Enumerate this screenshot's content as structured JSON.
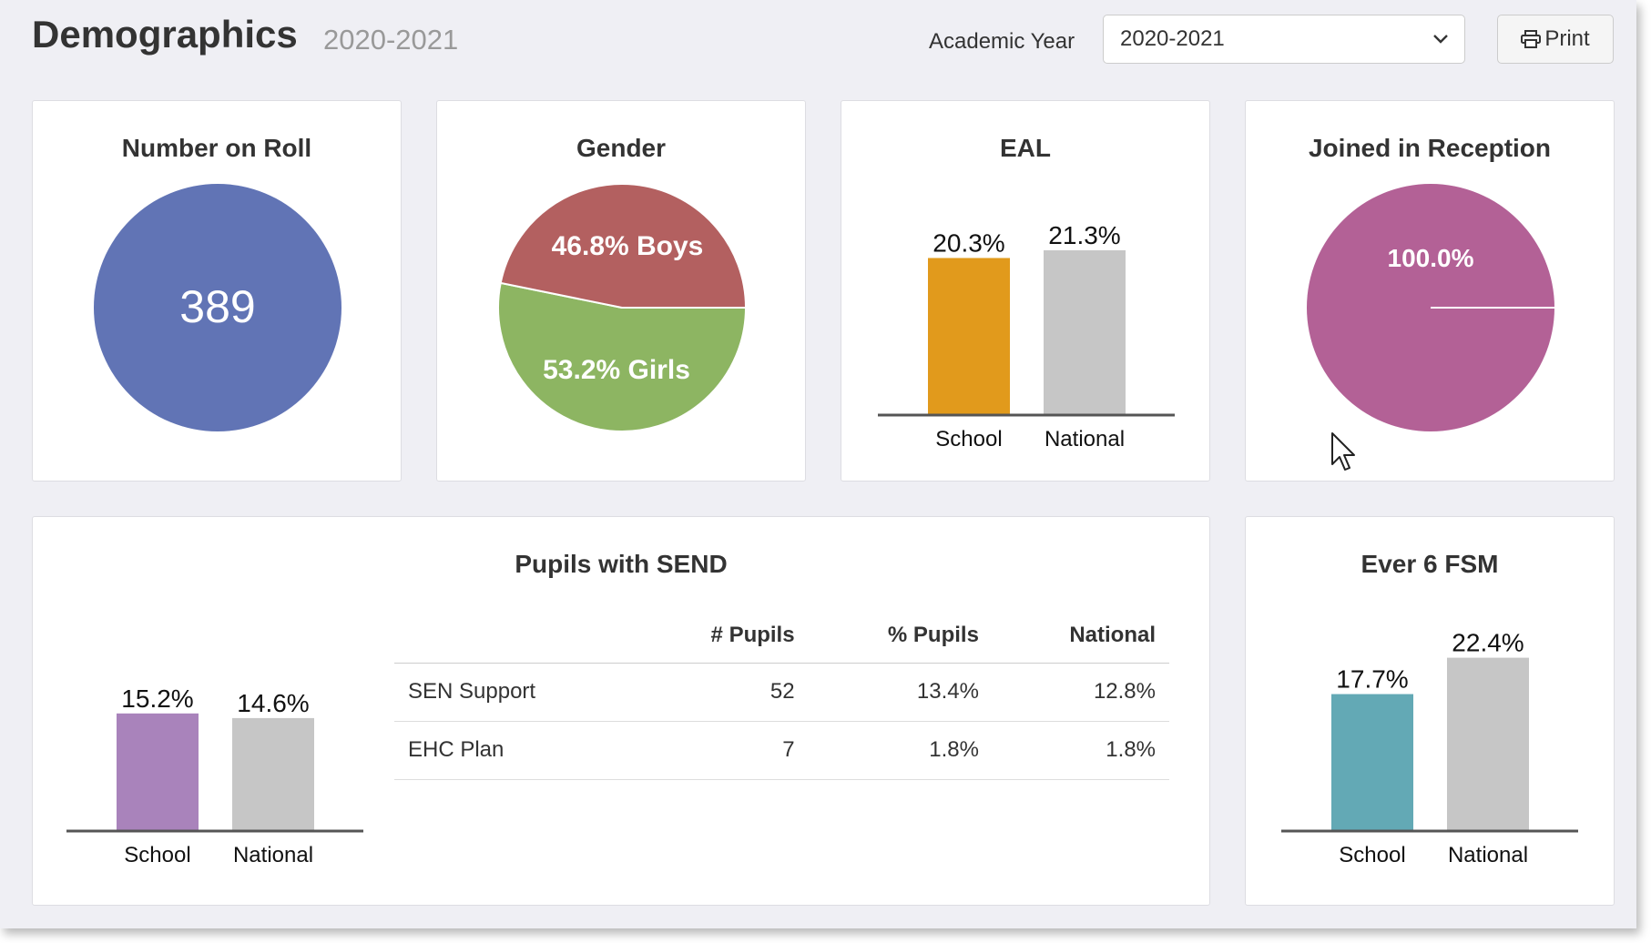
{
  "header": {
    "title": "Demographics",
    "subtitle": "2020-2021",
    "year_label": "Academic Year",
    "year_value": "2020-2021",
    "print_label": "Print"
  },
  "cards": {
    "roll": {
      "title": "Number on Roll",
      "value": "389"
    },
    "gender": {
      "title": "Gender",
      "boys_label": "46.8% Boys",
      "girls_label": "53.2% Girls"
    },
    "eal": {
      "title": "EAL",
      "school_label": "20.3%",
      "national_label": "21.3%",
      "x_school": "School",
      "x_national": "National"
    },
    "reception": {
      "title": "Joined in Reception",
      "value_label": "100.0%"
    },
    "send": {
      "title": "Pupils with SEND",
      "school_label": "15.2%",
      "national_label": "14.6%",
      "x_school": "School",
      "x_national": "National",
      "table": {
        "headers": [
          "",
          "# Pupils",
          "% Pupils",
          "National"
        ],
        "rows": [
          [
            "SEN Support",
            "52",
            "13.4%",
            "12.8%"
          ],
          [
            "EHC Plan",
            "7",
            "1.8%",
            "1.8%"
          ]
        ]
      }
    },
    "fsm": {
      "title": "Ever 6 FSM",
      "school_label": "17.7%",
      "national_label": "22.4%",
      "x_school": "School",
      "x_national": "National"
    }
  },
  "colors": {
    "roll": "#6174b5",
    "boys": "#b36060",
    "girls": "#8db562",
    "eal_school": "#e19a1c",
    "national": "#c6c6c6",
    "reception": "#b36196",
    "send_school": "#a983bb",
    "fsm_school": "#63a9b5"
  },
  "chart_data": [
    {
      "type": "pie",
      "title": "Number on Roll",
      "categories": [
        "Number on Roll"
      ],
      "values": [
        389
      ]
    },
    {
      "type": "pie",
      "title": "Gender",
      "categories": [
        "Boys",
        "Girls"
      ],
      "values": [
        46.8,
        53.2
      ]
    },
    {
      "type": "bar",
      "title": "EAL",
      "categories": [
        "School",
        "National"
      ],
      "values": [
        20.3,
        21.3
      ]
    },
    {
      "type": "pie",
      "title": "Joined in Reception",
      "categories": [
        "Joined in Reception"
      ],
      "values": [
        100.0
      ]
    },
    {
      "type": "bar",
      "title": "Pupils with SEND",
      "categories": [
        "School",
        "National"
      ],
      "values": [
        15.2,
        14.6
      ]
    },
    {
      "type": "bar",
      "title": "Ever 6 FSM",
      "categories": [
        "School",
        "National"
      ],
      "values": [
        17.7,
        22.4
      ]
    }
  ]
}
